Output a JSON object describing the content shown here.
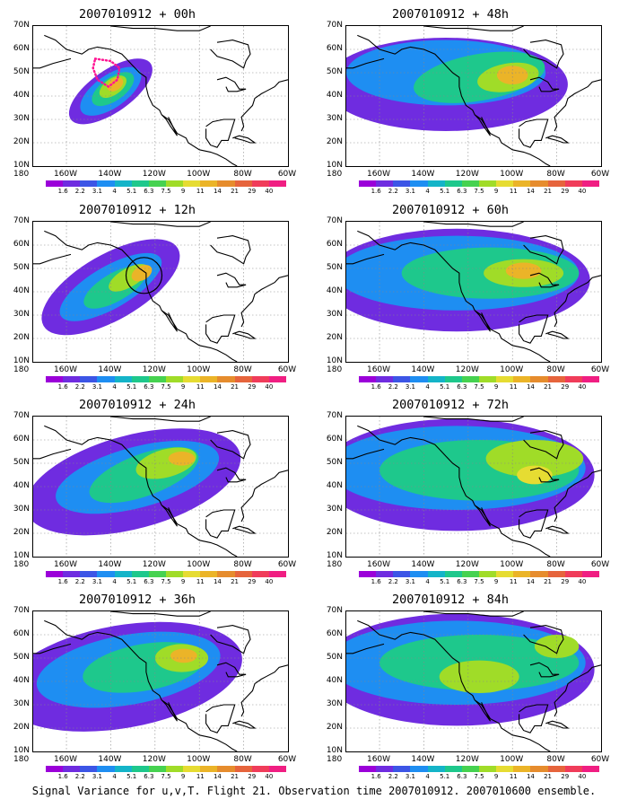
{
  "panels": [
    {
      "title": "2007010912 + 00h",
      "blobs": [
        {
          "cx": 140,
          "cy": 42,
          "rx": 22,
          "ry": 9,
          "rot": -35,
          "lvl": 1
        },
        {
          "cx": 140,
          "cy": 42,
          "rx": 16,
          "ry": 7,
          "rot": -35,
          "lvl": 3
        },
        {
          "cx": 139,
          "cy": 43,
          "rx": 11,
          "ry": 5,
          "rot": -35,
          "lvl": 5
        },
        {
          "cx": 139,
          "cy": 44,
          "rx": 7,
          "ry": 3.5,
          "rot": -35,
          "lvl": 7
        },
        {
          "cx": 138,
          "cy": 45,
          "rx": 4,
          "ry": 2.5,
          "rot": -35,
          "lvl": 9
        }
      ],
      "dots": true
    },
    {
      "title": "2007010912 + 48h",
      "blobs": [
        {
          "cx": 130,
          "cy": 45,
          "rx": 55,
          "ry": 20,
          "rot": 0,
          "lvl": 1
        },
        {
          "cx": 130,
          "cy": 50,
          "rx": 45,
          "ry": 14,
          "rot": 0,
          "lvl": 3
        },
        {
          "cx": 115,
          "cy": 48,
          "rx": 30,
          "ry": 10,
          "rot": -10,
          "lvl": 5
        },
        {
          "cx": 102,
          "cy": 48,
          "rx": 14,
          "ry": 6,
          "rot": -10,
          "lvl": 7
        },
        {
          "cx": 100,
          "cy": 49,
          "rx": 7,
          "ry": 4,
          "rot": 0,
          "lvl": 9
        }
      ]
    },
    {
      "title": "2007010912 + 12h",
      "blobs": [
        {
          "cx": 140,
          "cy": 42,
          "rx": 35,
          "ry": 14,
          "rot": -30,
          "lvl": 1
        },
        {
          "cx": 140,
          "cy": 42,
          "rx": 26,
          "ry": 9,
          "rot": -30,
          "lvl": 3
        },
        {
          "cx": 138,
          "cy": 42,
          "rx": 16,
          "ry": 6,
          "rot": -30,
          "lvl": 5
        },
        {
          "cx": 132,
          "cy": 46,
          "rx": 10,
          "ry": 4,
          "rot": -30,
          "lvl": 7
        },
        {
          "cx": 126,
          "cy": 48,
          "rx": 5,
          "ry": 3,
          "rot": -30,
          "lvl": 9
        }
      ],
      "circle": true
    },
    {
      "title": "2007010912 + 60h",
      "blobs": [
        {
          "cx": 125,
          "cy": 45,
          "rx": 60,
          "ry": 22,
          "rot": 0,
          "lvl": 1
        },
        {
          "cx": 125,
          "cy": 48,
          "rx": 55,
          "ry": 16,
          "rot": 0,
          "lvl": 3
        },
        {
          "cx": 110,
          "cy": 48,
          "rx": 40,
          "ry": 11,
          "rot": 0,
          "lvl": 5
        },
        {
          "cx": 95,
          "cy": 48,
          "rx": 18,
          "ry": 6,
          "rot": 0,
          "lvl": 7
        },
        {
          "cx": 95,
          "cy": 49,
          "rx": 8,
          "ry": 3.5,
          "rot": 0,
          "lvl": 9
        }
      ]
    },
    {
      "title": "2007010912 + 24h",
      "blobs": [
        {
          "cx": 130,
          "cy": 42,
          "rx": 50,
          "ry": 20,
          "rot": -15,
          "lvl": 1
        },
        {
          "cx": 128,
          "cy": 44,
          "rx": 38,
          "ry": 13,
          "rot": -15,
          "lvl": 3
        },
        {
          "cx": 125,
          "cy": 45,
          "rx": 26,
          "ry": 9,
          "rot": -20,
          "lvl": 5
        },
        {
          "cx": 115,
          "cy": 50,
          "rx": 14,
          "ry": 6,
          "rot": -15,
          "lvl": 7
        },
        {
          "cx": 108,
          "cy": 52,
          "rx": 6,
          "ry": 3,
          "rot": 0,
          "lvl": 9
        }
      ]
    },
    {
      "title": "2007010912 + 72h",
      "blobs": [
        {
          "cx": 125,
          "cy": 45,
          "rx": 62,
          "ry": 24,
          "rot": 0,
          "lvl": 1
        },
        {
          "cx": 125,
          "cy": 48,
          "rx": 58,
          "ry": 18,
          "rot": 0,
          "lvl": 3
        },
        {
          "cx": 115,
          "cy": 47,
          "rx": 45,
          "ry": 13,
          "rot": 0,
          "lvl": 5
        },
        {
          "cx": 90,
          "cy": 52,
          "rx": 22,
          "ry": 8,
          "rot": 0,
          "lvl": 7
        },
        {
          "cx": 90,
          "cy": 45,
          "rx": 8,
          "ry": 4,
          "rot": 0,
          "lvl": 8
        }
      ]
    },
    {
      "title": "2007010912 + 36h",
      "blobs": [
        {
          "cx": 135,
          "cy": 42,
          "rx": 55,
          "ry": 22,
          "rot": -10,
          "lvl": 1
        },
        {
          "cx": 132,
          "cy": 45,
          "rx": 42,
          "ry": 15,
          "rot": -10,
          "lvl": 3
        },
        {
          "cx": 125,
          "cy": 46,
          "rx": 28,
          "ry": 10,
          "rot": -10,
          "lvl": 5
        },
        {
          "cx": 108,
          "cy": 50,
          "rx": 12,
          "ry": 6,
          "rot": 0,
          "lvl": 7
        },
        {
          "cx": 107,
          "cy": 51,
          "rx": 6,
          "ry": 3,
          "rot": 0,
          "lvl": 9
        }
      ]
    },
    {
      "title": "2007010912 + 84h",
      "blobs": [
        {
          "cx": 125,
          "cy": 45,
          "rx": 62,
          "ry": 24,
          "rot": 0,
          "lvl": 1
        },
        {
          "cx": 125,
          "cy": 48,
          "rx": 58,
          "ry": 18,
          "rot": 0,
          "lvl": 3
        },
        {
          "cx": 115,
          "cy": 48,
          "rx": 45,
          "ry": 12,
          "rot": 0,
          "lvl": 5
        },
        {
          "cx": 115,
          "cy": 42,
          "rx": 18,
          "ry": 7,
          "rot": 0,
          "lvl": 7
        },
        {
          "cx": 80,
          "cy": 55,
          "rx": 10,
          "ry": 5,
          "rot": 0,
          "lvl": 7
        }
      ]
    }
  ],
  "lat_labels": [
    "70N",
    "60N",
    "50N",
    "40N",
    "30N",
    "20N",
    "10N"
  ],
  "lon_labels": [
    "180",
    "160W",
    "140W",
    "120W",
    "100W",
    "80W",
    "60W"
  ],
  "colorbar_labels": [
    "1.6",
    "2.2",
    "3.1",
    "4",
    "5.1",
    "6.3",
    "7.5",
    "9",
    "11",
    "14",
    "21",
    "29",
    "40"
  ],
  "colorbar_colors": [
    "#9b00d9",
    "#6f2ce0",
    "#3c55e6",
    "#1e8ef2",
    "#14b4c8",
    "#1ec88c",
    "#46d250",
    "#a0dc28",
    "#e6dc32",
    "#ebb428",
    "#e68c2d",
    "#e6643c",
    "#f03c5a",
    "#f01e82"
  ],
  "caption": "Signal Variance for u,v,T. Flight 21. Observation time 2007010912. 2007010600 ensemble."
}
